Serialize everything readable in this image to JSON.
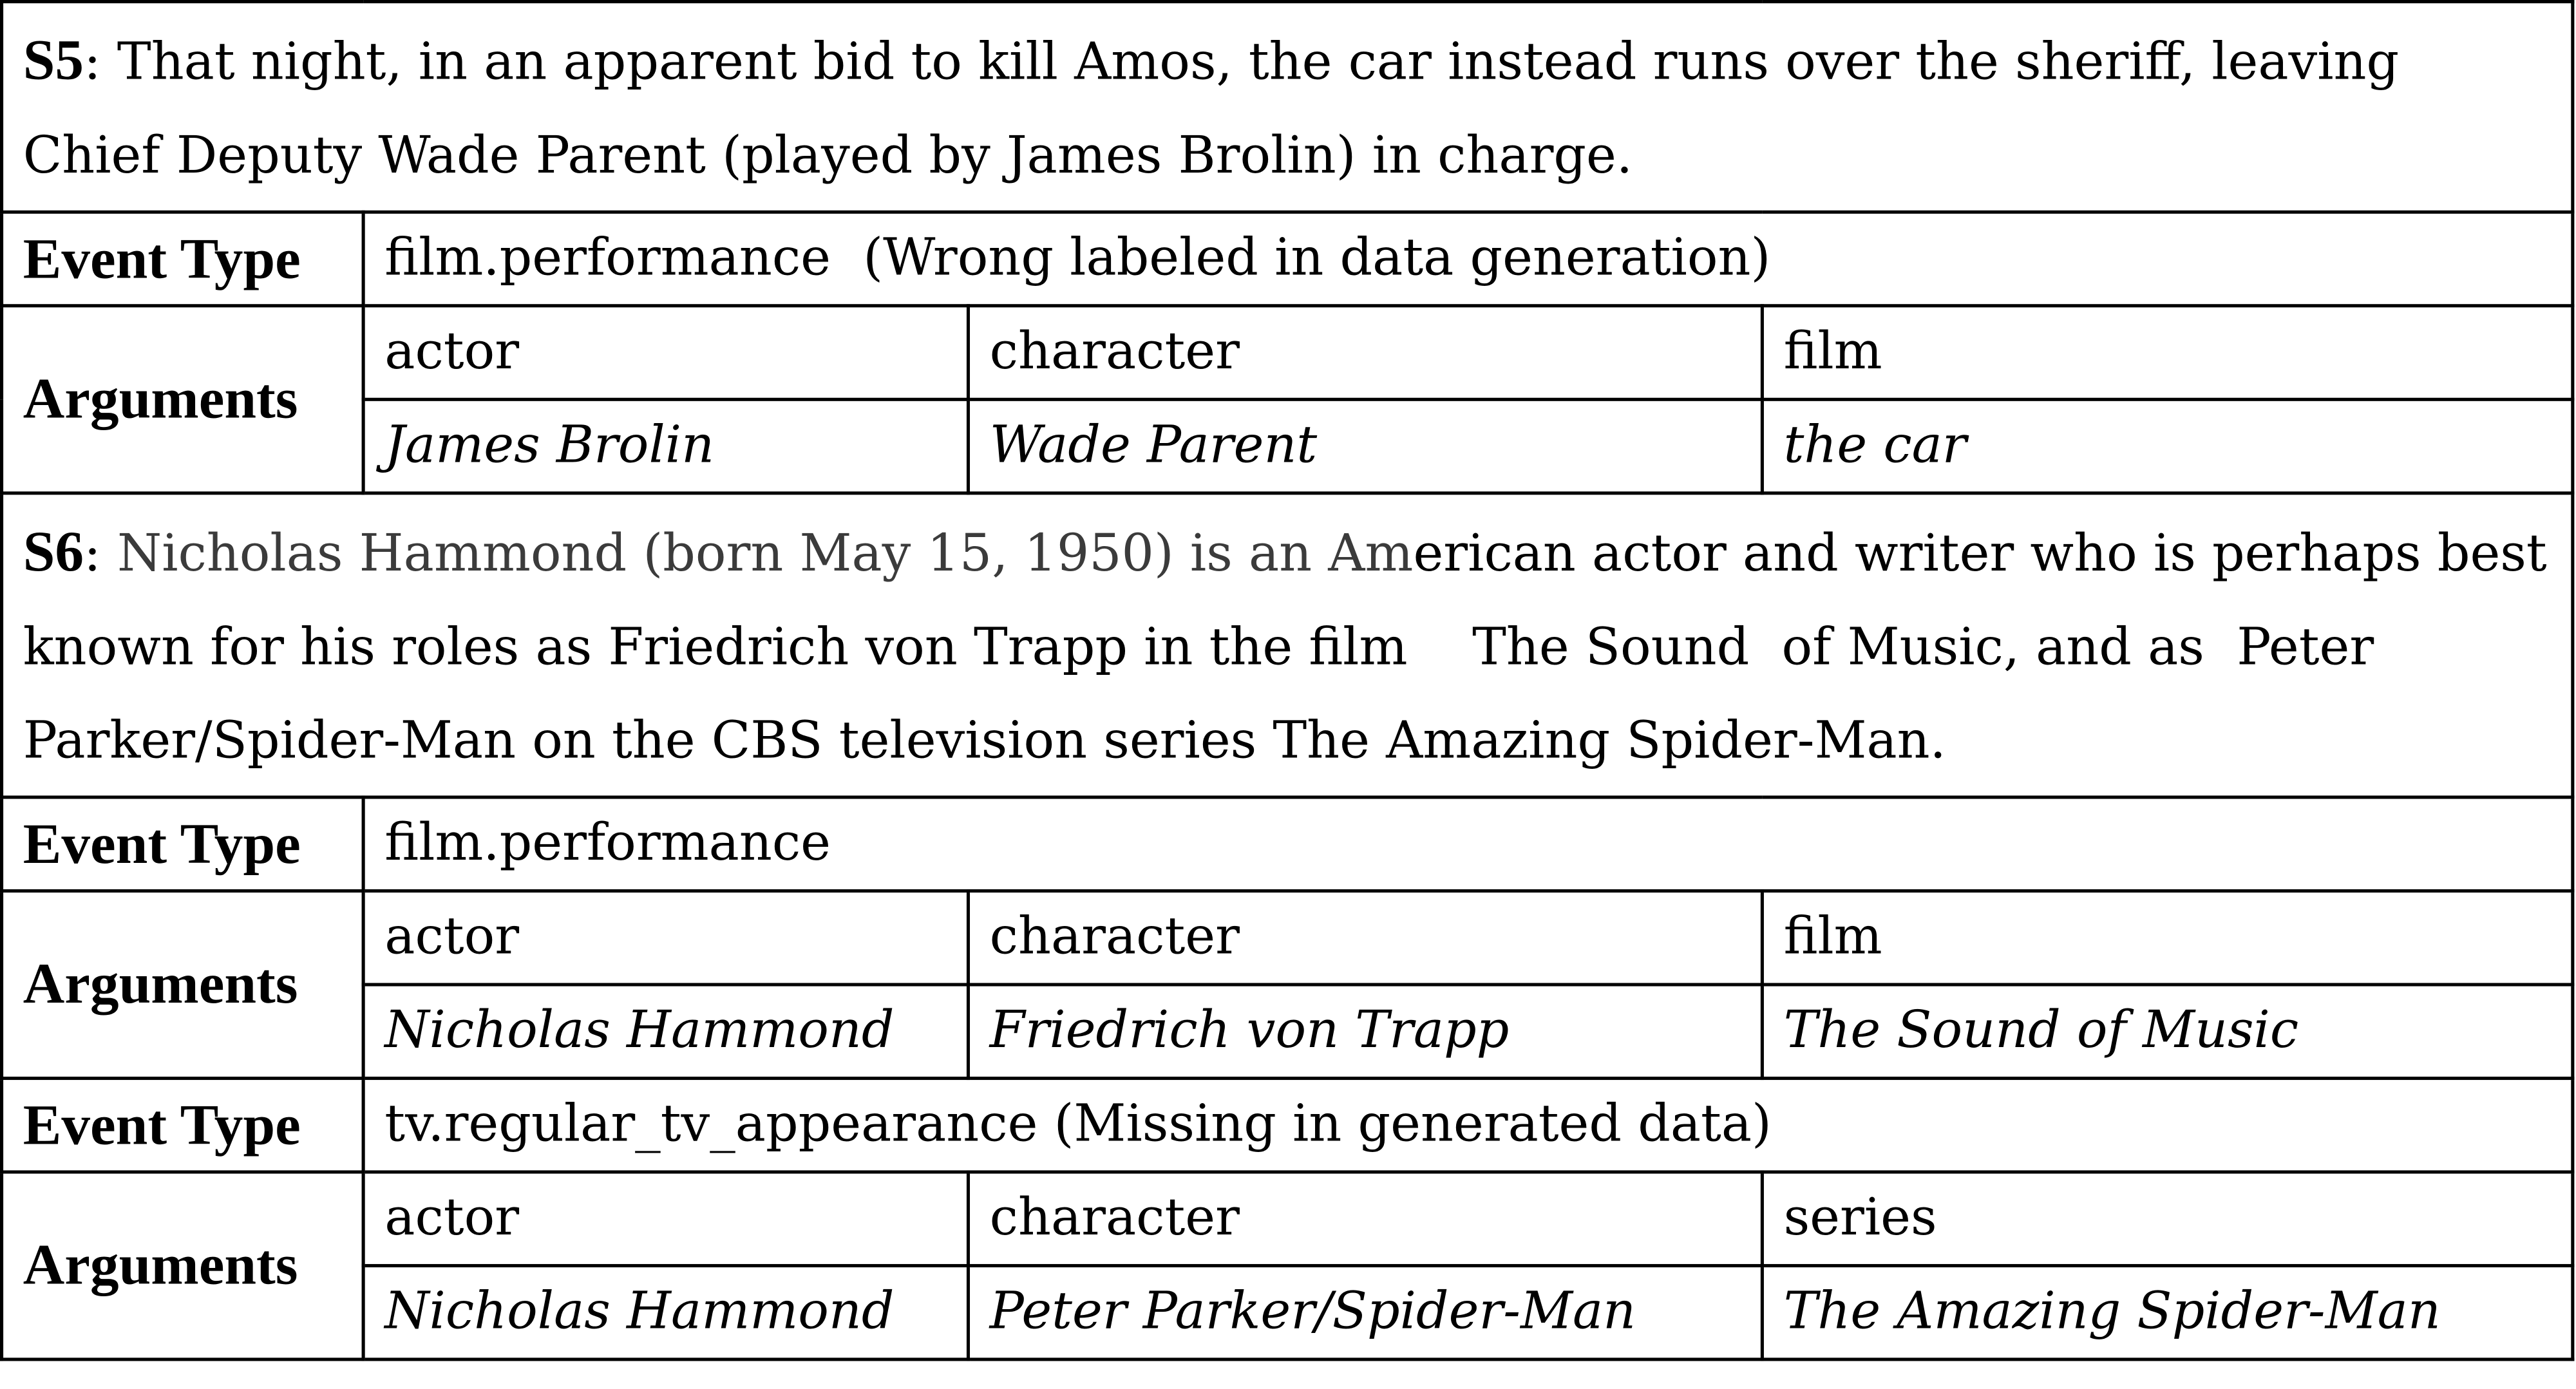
{
  "s5": {
    "id": "S5",
    "sentence": ": That night, in an apparent bid to kill Amos, the car instead runs over the sheriff, leaving Chief Deputy Wade Parent (played by James Brolin) in charge.",
    "event_type_label": "Event Type",
    "event_type": "film.performance  (Wrong labeled in data generation)",
    "arguments_label": "Arguments",
    "roles": [
      "actor",
      "character",
      "film"
    ],
    "values": [
      "James Brolin",
      "Wade Parent",
      "the car"
    ]
  },
  "s6": {
    "id": "S6",
    "sentence_gray": "Nicholas Hammond (born May 15, 1950) is an Am",
    "sentence_rest": "erican actor and writer who is perhaps best known for his roles as Friedrich von Trapp in the film    The Sound  of Music, and as  Peter Parker/Spider-Man on the CBS television series The Amazing Spider-Man.",
    "events": [
      {
        "event_type_label": "Event Type",
        "event_type": "film.performance",
        "arguments_label": "Arguments",
        "roles": [
          "actor",
          "character",
          "film"
        ],
        "values": [
          "Nicholas Hammond",
          "Friedrich von Trapp",
          "The Sound of Music"
        ]
      },
      {
        "event_type_label": "Event Type",
        "event_type": "tv.regular_tv_appearance (Missing in generated data)",
        "arguments_label": "Arguments",
        "roles": [
          "actor",
          "character",
          "series"
        ],
        "values": [
          "Nicholas Hammond",
          "Peter Parker/Spider-Man",
          "The Amazing Spider-Man"
        ]
      }
    ]
  }
}
